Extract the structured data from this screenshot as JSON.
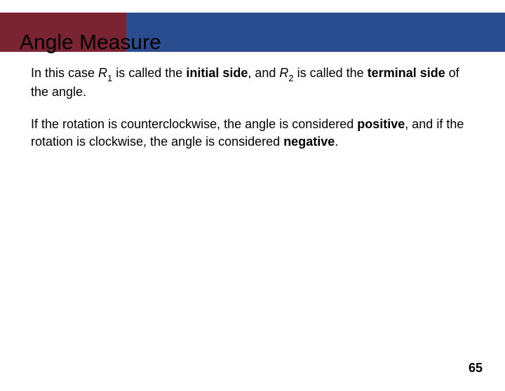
{
  "header": {
    "title": "Angle Measure",
    "left_bg": "#7a2433",
    "right_bg": "#2a4d8f"
  },
  "paragraphs": {
    "p1": {
      "t1": "In this case ",
      "r1_letter": "R",
      "r1_sub": "1",
      "t2": " is called the ",
      "bold1": "initial side",
      "t3": ", and ",
      "r2_letter": "R",
      "r2_sub": "2",
      "t4": " is called the ",
      "bold2": "terminal side",
      "t5": " of the angle."
    },
    "p2": {
      "t1": "If the rotation is counterclockwise, the angle is considered ",
      "bold1": "positive",
      "t2": ", and if the rotation is clockwise, the angle is considered ",
      "bold2": "negative",
      "t3": "."
    }
  },
  "page_number": "65",
  "style": {
    "body_fontsize": 18,
    "title_fontsize": 30,
    "background": "#ffffff",
    "text_color": "#000000"
  }
}
